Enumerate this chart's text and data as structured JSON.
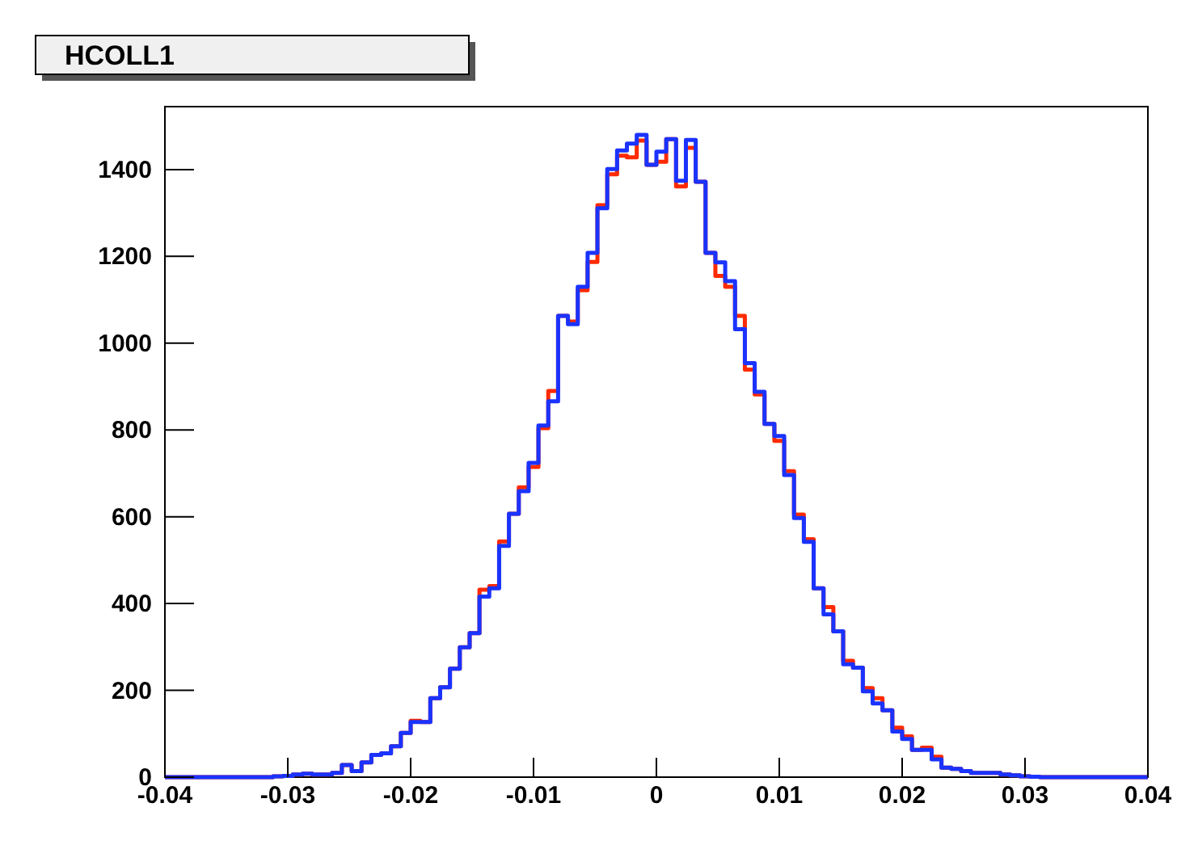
{
  "chart_data": {
    "type": "histogram",
    "title": "HCOLL1",
    "bins": [
      -0.04,
      -0.0392,
      -0.0384,
      -0.0376,
      -0.0368,
      -0.036,
      -0.0352,
      -0.0344,
      -0.0336,
      -0.0328,
      -0.032,
      -0.0312,
      -0.0304,
      -0.0296,
      -0.0288,
      -0.028,
      -0.0272,
      -0.0264,
      -0.0256,
      -0.0248,
      -0.024,
      -0.0232,
      -0.0224,
      -0.0216,
      -0.0208,
      -0.02,
      -0.0192,
      -0.0184,
      -0.0176,
      -0.0168,
      -0.016,
      -0.0152,
      -0.0144,
      -0.0136,
      -0.0128,
      -0.012,
      -0.0112,
      -0.0104,
      -0.0096,
      -0.0088,
      -0.008,
      -0.0072,
      -0.0064,
      -0.0056,
      -0.0048,
      -0.004,
      -0.0032,
      -0.0024,
      -0.0016,
      -0.0008,
      0,
      0.0008,
      0.0016,
      0.0024,
      0.0032,
      0.004,
      0.0048,
      0.0056,
      0.0064,
      0.0072,
      0.008,
      0.0088,
      0.0096,
      0.0104,
      0.0112,
      0.012,
      0.0128,
      0.0136,
      0.0144,
      0.0152,
      0.016,
      0.0168,
      0.0176,
      0.0184,
      0.0192,
      0.02,
      0.0208,
      0.0216,
      0.0224,
      0.0232,
      0.024,
      0.0248,
      0.0256,
      0.0264,
      0.0272,
      0.028,
      0.0288,
      0.0296,
      0.0304,
      0.0312,
      0.032,
      0.0328,
      0.0336,
      0.0344,
      0.0352,
      0.036,
      0.0368,
      0.0376,
      0.0384,
      0.0392,
      0.04
    ],
    "series": [
      {
        "color": "#ff2a00",
        "values": [
          0,
          0,
          0,
          0,
          0,
          0,
          0,
          0,
          0,
          0,
          0,
          2,
          3,
          6,
          8,
          6,
          6,
          10,
          28,
          14,
          34,
          51,
          55,
          71,
          102,
          130,
          127,
          182,
          207,
          250,
          299,
          332,
          432,
          440,
          543,
          607,
          668,
          715,
          804,
          890,
          1063,
          1050,
          1122,
          1187,
          1318,
          1389,
          1432,
          1428,
          1467,
          1411,
          1418,
          1470,
          1361,
          1450,
          1372,
          1208,
          1155,
          1130,
          1063,
          939,
          882,
          814,
          775,
          705,
          605,
          548,
          435,
          392,
          336,
          268,
          252,
          205,
          182,
          154,
          114,
          94,
          63,
          68,
          47,
          22,
          19,
          14,
          10,
          10,
          10,
          6,
          4,
          2,
          1,
          0,
          0,
          0,
          0,
          0,
          0,
          0,
          0,
          0,
          0,
          0
        ]
      },
      {
        "color": "#1a33ff",
        "values": [
          0,
          0,
          0,
          0,
          0,
          0,
          0,
          0,
          0,
          0,
          0,
          2,
          3,
          6,
          8,
          6,
          6,
          10,
          28,
          14,
          34,
          51,
          55,
          71,
          102,
          127,
          127,
          182,
          207,
          250,
          299,
          332,
          416,
          435,
          533,
          607,
          659,
          724,
          810,
          866,
          1063,
          1044,
          1130,
          1208,
          1311,
          1401,
          1444,
          1460,
          1480,
          1411,
          1441,
          1470,
          1374,
          1468,
          1372,
          1208,
          1186,
          1143,
          1032,
          954,
          888,
          814,
          786,
          696,
          597,
          542,
          435,
          375,
          336,
          260,
          252,
          198,
          170,
          154,
          105,
          88,
          63,
          63,
          41,
          22,
          19,
          14,
          10,
          10,
          10,
          6,
          4,
          2,
          1,
          0,
          0,
          0,
          0,
          0,
          0,
          0,
          0,
          0,
          0,
          0
        ]
      }
    ],
    "xlim": [
      -0.04,
      0.04
    ],
    "xticks": [
      -0.04,
      -0.03,
      -0.02,
      -0.01,
      0,
      0.01,
      0.02,
      0.03,
      0.04
    ],
    "ylim": [
      0,
      1545
    ],
    "yticks": [
      0,
      200,
      400,
      600,
      800,
      1000,
      1200,
      1400
    ]
  }
}
